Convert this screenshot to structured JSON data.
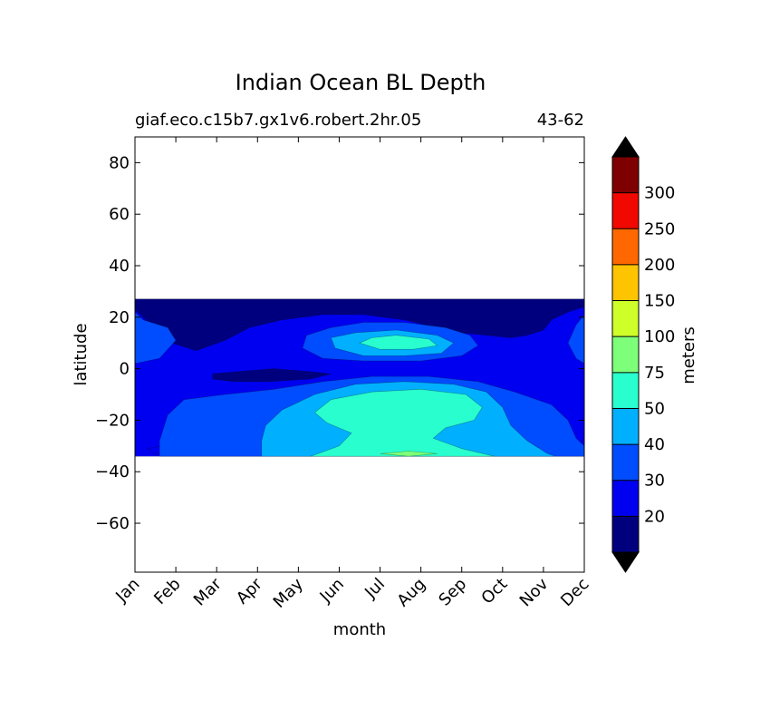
{
  "chart_data": {
    "type": "heatmap",
    "title": "Indian Ocean BL Depth",
    "subtitle_left": "giaf.eco.c15b7.gx1v6.robert.2hr.05",
    "subtitle_right": "43-62",
    "xlabel": "month",
    "ylabel": "latitude",
    "x_ticks": [
      "Jan",
      "Feb",
      "Mar",
      "Apr",
      "May",
      "Jun",
      "Jul",
      "Aug",
      "Sep",
      "Oct",
      "Nov",
      "Dec"
    ],
    "y_ticks": [
      80,
      60,
      40,
      20,
      0,
      -20,
      -40,
      -60
    ],
    "xlim": [
      1,
      12
    ],
    "ylim": [
      -79,
      90
    ],
    "data_lat_range": [
      -34,
      27
    ],
    "colorbar": {
      "label": "meters",
      "tick_labels": [
        "20",
        "30",
        "40",
        "50",
        "75",
        "100",
        "150",
        "200",
        "250",
        "300"
      ],
      "bins": [
        {
          "color": "#00007f"
        },
        {
          "color": "#0000f1"
        },
        {
          "color": "#004cff"
        },
        {
          "color": "#00b0ff"
        },
        {
          "color": "#29ffce"
        },
        {
          "color": "#7dff7a"
        },
        {
          "color": "#ceff29"
        },
        {
          "color": "#ffc400"
        },
        {
          "color": "#ff6800"
        },
        {
          "color": "#f10800"
        },
        {
          "color": "#7f0000"
        }
      ],
      "under_color": "#000000",
      "over_color": "#000000"
    },
    "regions": [
      {
        "level": 1,
        "points": [
          [
            1,
            27
          ],
          [
            12,
            27
          ],
          [
            12,
            -34
          ],
          [
            1,
            -34
          ]
        ]
      },
      {
        "level": 0,
        "points": [
          [
            1,
            27
          ],
          [
            12,
            27
          ],
          [
            12,
            24
          ],
          [
            11.6,
            22
          ],
          [
            11.2,
            19
          ],
          [
            11,
            15
          ],
          [
            10.6,
            13
          ],
          [
            10.2,
            12
          ],
          [
            9.6,
            13
          ],
          [
            9,
            14
          ],
          [
            8.4,
            16
          ],
          [
            7.6,
            19
          ],
          [
            6.6,
            21
          ],
          [
            5.6,
            21
          ],
          [
            4.6,
            19
          ],
          [
            3.8,
            16
          ],
          [
            3.2,
            11
          ],
          [
            2.5,
            7
          ],
          [
            1.9,
            10
          ],
          [
            1.5,
            15
          ],
          [
            1.2,
            20
          ],
          [
            1,
            23
          ]
        ]
      },
      {
        "level": 0,
        "points": [
          [
            2.9,
            -2
          ],
          [
            3.6,
            -1
          ],
          [
            4.4,
            0
          ],
          [
            5.2,
            -1
          ],
          [
            5.8,
            -2
          ],
          [
            5.3,
            -4
          ],
          [
            4.3,
            -5
          ],
          [
            3.4,
            -5
          ],
          [
            2.9,
            -4
          ]
        ]
      },
      {
        "level": 1,
        "points": [
          [
            1.3,
            -31
          ],
          [
            2,
            -29
          ],
          [
            2.8,
            -31
          ],
          [
            2.2,
            -33
          ],
          [
            1.5,
            -33
          ]
        ]
      },
      {
        "level": 1,
        "points": [
          [
            11.5,
            -30
          ],
          [
            12,
            -28
          ],
          [
            12,
            -34
          ],
          [
            11.7,
            -33
          ]
        ]
      },
      {
        "level": 2,
        "points": [
          [
            1,
            22
          ],
          [
            1.2,
            19
          ],
          [
            1.8,
            16
          ],
          [
            2,
            11
          ],
          [
            1.6,
            4
          ],
          [
            1,
            2
          ]
        ]
      },
      {
        "level": 2,
        "points": [
          [
            12,
            21
          ],
          [
            11.8,
            17
          ],
          [
            11.6,
            10
          ],
          [
            11.8,
            4
          ],
          [
            12,
            2
          ]
        ]
      },
      {
        "level": 2,
        "points": [
          [
            5.2,
            13
          ],
          [
            5.8,
            16
          ],
          [
            6.6,
            18
          ],
          [
            7.6,
            18
          ],
          [
            8.6,
            16
          ],
          [
            9.2,
            13
          ],
          [
            9.4,
            9
          ],
          [
            9,
            5
          ],
          [
            8,
            3
          ],
          [
            6.6,
            3
          ],
          [
            5.6,
            4
          ],
          [
            5.1,
            8
          ]
        ]
      },
      {
        "level": 2,
        "points": [
          [
            2.2,
            -12
          ],
          [
            3.2,
            -10
          ],
          [
            4.4,
            -8
          ],
          [
            5.6,
            -5
          ],
          [
            6.8,
            -3
          ],
          [
            8.2,
            -3
          ],
          [
            9.4,
            -5
          ],
          [
            10.3,
            -9
          ],
          [
            11.2,
            -14
          ],
          [
            11.6,
            -20
          ],
          [
            11.8,
            -27
          ],
          [
            12,
            -30
          ],
          [
            12,
            -34
          ],
          [
            1.6,
            -34
          ],
          [
            1.6,
            -28
          ],
          [
            1.8,
            -18
          ]
        ]
      },
      {
        "level": 3,
        "points": [
          [
            5.8,
            12
          ],
          [
            6.4,
            14
          ],
          [
            7.4,
            15
          ],
          [
            8.4,
            13
          ],
          [
            8.8,
            10
          ],
          [
            8.5,
            6
          ],
          [
            7.6,
            5
          ],
          [
            6.6,
            5
          ],
          [
            5.9,
            8
          ]
        ]
      },
      {
        "level": 3,
        "points": [
          [
            4.2,
            -22
          ],
          [
            4.6,
            -16
          ],
          [
            5.4,
            -10
          ],
          [
            6.4,
            -6
          ],
          [
            7.6,
            -5
          ],
          [
            8.8,
            -6
          ],
          [
            9.6,
            -9
          ],
          [
            10,
            -15
          ],
          [
            10.2,
            -22
          ],
          [
            10.6,
            -28
          ],
          [
            11.1,
            -33
          ],
          [
            11.3,
            -34
          ],
          [
            4.1,
            -34
          ],
          [
            4.1,
            -28
          ]
        ]
      },
      {
        "level": 4,
        "points": [
          [
            6.5,
            10
          ],
          [
            6.8,
            12
          ],
          [
            7.4,
            13
          ],
          [
            8.2,
            11.5
          ],
          [
            8.4,
            9
          ],
          [
            7.8,
            7.5
          ],
          [
            7,
            7.5
          ]
        ]
      },
      {
        "level": 4,
        "points": [
          [
            5.4,
            -17
          ],
          [
            5.8,
            -12
          ],
          [
            6.8,
            -9
          ],
          [
            8,
            -8
          ],
          [
            9.1,
            -10
          ],
          [
            9.5,
            -15
          ],
          [
            9.3,
            -20
          ],
          [
            8.6,
            -23
          ],
          [
            8.3,
            -27
          ],
          [
            9,
            -31
          ],
          [
            9.8,
            -34
          ],
          [
            5.3,
            -34
          ],
          [
            6,
            -30
          ],
          [
            6.3,
            -25
          ],
          [
            5.7,
            -21
          ]
        ]
      },
      {
        "level": 5,
        "points": [
          [
            7,
            -33
          ],
          [
            7.7,
            -32
          ],
          [
            8.4,
            -33
          ],
          [
            7.7,
            -34
          ]
        ]
      }
    ]
  }
}
